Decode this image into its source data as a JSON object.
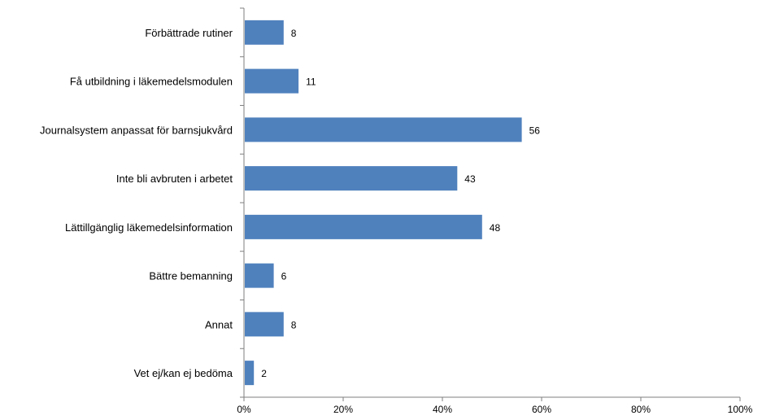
{
  "chart_data": {
    "type": "bar",
    "orientation": "horizontal",
    "categories": [
      "Förbättrade rutiner",
      "Få utbildning i läkemedelsmodulen",
      "Journalsystem anpassat för barnsjukvård",
      "Inte bli avbruten i arbetet",
      "Lättillgänglig läkemedelsinformation",
      "Bättre bemanning",
      "Annat",
      "Vet ej/kan ej bedöma"
    ],
    "values": [
      8,
      11,
      56,
      43,
      48,
      6,
      8,
      2
    ],
    "data_labels": [
      "8",
      "11",
      "56",
      "43",
      "48",
      "6",
      "8",
      "2"
    ],
    "xlim": [
      0,
      100
    ],
    "xticks": [
      0,
      20,
      40,
      60,
      80,
      100
    ],
    "xtick_labels": [
      "0%",
      "20%",
      "40%",
      "60%",
      "80%",
      "100%"
    ],
    "title": "",
    "xlabel": "",
    "ylabel": "",
    "grid": false,
    "legend": "none",
    "bar_color": "#4f81bd"
  }
}
